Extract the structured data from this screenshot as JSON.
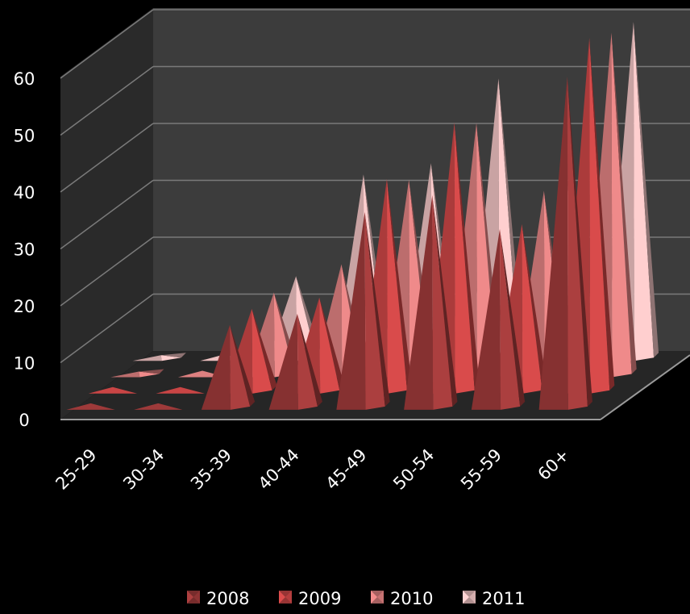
{
  "chart_data": {
    "type": "bar",
    "subtype": "3d-pyramid",
    "title": "",
    "xlabel": "",
    "ylabel": "",
    "ylim": [
      0,
      60
    ],
    "y_ticks": [
      "0",
      "10",
      "20",
      "30",
      "40",
      "50",
      "60"
    ],
    "grid": true,
    "legend_position": "bottom",
    "categories": [
      "25-29",
      "30-34",
      "35-39",
      "40-44",
      "45-49",
      "50-54",
      "55-59",
      "60+"
    ],
    "series": [
      {
        "name": "2008",
        "color": "#9e3a3a",
        "values": [
          0,
          0,
          15,
          17,
          35,
          38,
          32,
          59
        ]
      },
      {
        "name": "2009",
        "color": "#c94545",
        "values": [
          0,
          0,
          15,
          17,
          38,
          48,
          30,
          63
        ]
      },
      {
        "name": "2010",
        "color": "#dd8080",
        "values": [
          1,
          0,
          15,
          20,
          35,
          45,
          33,
          61
        ]
      },
      {
        "name": "2011",
        "color": "#ecc0c0",
        "values": [
          1,
          0,
          15,
          33,
          35,
          50,
          33,
          60
        ]
      }
    ]
  }
}
